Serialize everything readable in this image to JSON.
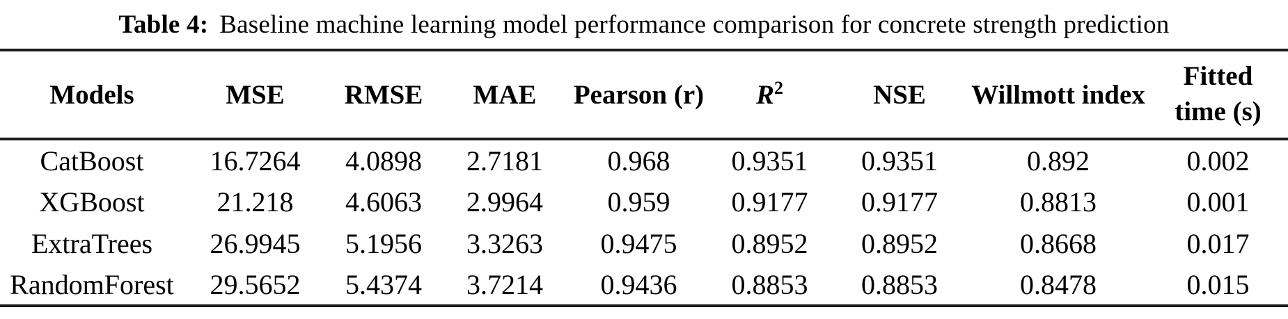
{
  "colors": {
    "background": "#ffffff",
    "text": "#000000",
    "rule": "#1a1a1a"
  },
  "caption": {
    "label": "Table 4:",
    "text": "Baseline machine learning model performance comparison for concrete strength prediction"
  },
  "table": {
    "header": {
      "models": "Models",
      "mse": "MSE",
      "rmse": "RMSE",
      "mae": "MAE",
      "pearson": "Pearson (r)",
      "r2_base": "R",
      "r2_sup": "2",
      "nse": "NSE",
      "willmott": "Willmott index",
      "fitted_line1": "Fitted",
      "fitted_line2": "time (s)"
    },
    "rows": [
      [
        "CatBoost",
        "16.7264",
        "4.0898",
        "2.7181",
        "0.968",
        "0.9351",
        "0.9351",
        "0.892",
        "0.002"
      ],
      [
        "XGBoost",
        "21.218",
        "4.6063",
        "2.9964",
        "0.959",
        "0.9177",
        "0.9177",
        "0.8813",
        "0.001"
      ],
      [
        "ExtraTrees",
        "26.9945",
        "5.1956",
        "3.3263",
        "0.9475",
        "0.8952",
        "0.8952",
        "0.8668",
        "0.017"
      ],
      [
        "RandomForest",
        "29.5652",
        "5.4374",
        "3.7214",
        "0.9436",
        "0.8853",
        "0.8853",
        "0.8478",
        "0.015"
      ]
    ]
  },
  "chart_data": {
    "type": "table",
    "title": "Table 4: Baseline machine learning model performance comparison for concrete strength prediction",
    "columns": [
      "Models",
      "MSE",
      "RMSE",
      "MAE",
      "Pearson (r)",
      "R2",
      "NSE",
      "Willmott index",
      "Fitted time (s)"
    ],
    "rows": [
      {
        "model": "CatBoost",
        "mse": 16.7264,
        "rmse": 4.0898,
        "mae": 2.7181,
        "pearson_r": 0.968,
        "r2": 0.9351,
        "nse": 0.9351,
        "willmott_index": 0.892,
        "fitted_time_s": 0.002
      },
      {
        "model": "XGBoost",
        "mse": 21.218,
        "rmse": 4.6063,
        "mae": 2.9964,
        "pearson_r": 0.959,
        "r2": 0.9177,
        "nse": 0.9177,
        "willmott_index": 0.8813,
        "fitted_time_s": 0.001
      },
      {
        "model": "ExtraTrees",
        "mse": 26.9945,
        "rmse": 5.1956,
        "mae": 3.3263,
        "pearson_r": 0.9475,
        "r2": 0.8952,
        "nse": 0.8952,
        "willmott_index": 0.8668,
        "fitted_time_s": 0.017
      },
      {
        "model": "RandomForest",
        "mse": 29.5652,
        "rmse": 5.4374,
        "mae": 3.7214,
        "pearson_r": 0.9436,
        "r2": 0.8853,
        "nse": 0.8853,
        "willmott_index": 0.8478,
        "fitted_time_s": 0.015
      }
    ]
  }
}
